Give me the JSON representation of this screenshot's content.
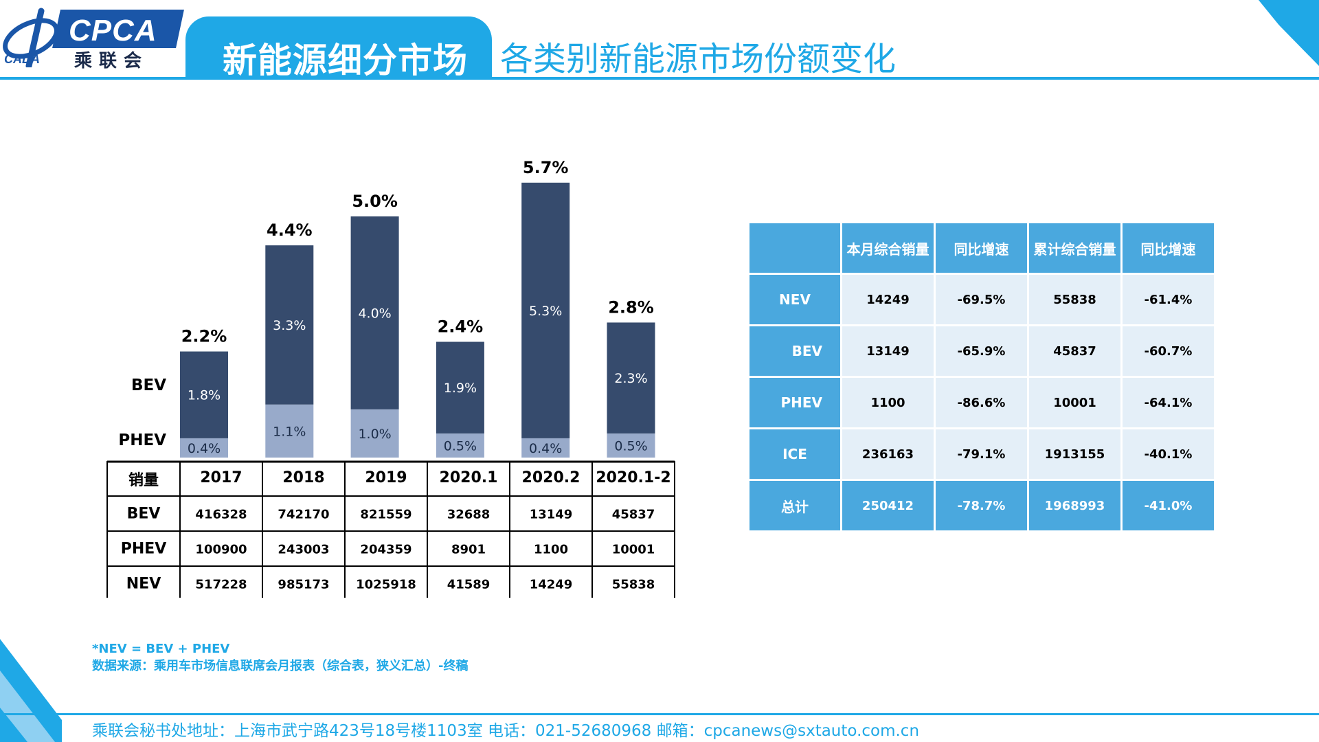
{
  "header": {
    "logo_text": "CPCA",
    "logo_cn": "乘联会",
    "logo_sub": "CADA",
    "tab_label": "新能源细分市场",
    "page_title": "各类别新能源市场份额变化"
  },
  "colors": {
    "accent": "#1fa8e6",
    "bev": "#364b6d",
    "phev": "#98aaca",
    "table_header": "#4aa8de",
    "table_cell": "#e4eff8"
  },
  "chart_data": {
    "type": "bar",
    "stacked": true,
    "categories": [
      "2017",
      "2018",
      "2019",
      "2020.1",
      "2020.2",
      "2020.1-2"
    ],
    "series": [
      {
        "name": "PHEV",
        "values": [
          0.4,
          1.1,
          1.0,
          0.5,
          0.4,
          0.5
        ],
        "labels": [
          "0.4%",
          "1.1%",
          "1.0%",
          "0.5%",
          "0.4%",
          "0.5%"
        ]
      },
      {
        "name": "BEV",
        "values": [
          1.8,
          3.3,
          4.0,
          1.9,
          5.3,
          2.3
        ],
        "labels": [
          "1.8%",
          "3.3%",
          "4.0%",
          "1.9%",
          "5.3%",
          "2.3%"
        ]
      }
    ],
    "totals": [
      2.2,
      4.4,
      5.0,
      2.4,
      5.7,
      2.8
    ],
    "total_labels": [
      "2.2%",
      "4.4%",
      "5.0%",
      "2.4%",
      "5.7%",
      "2.8%"
    ],
    "ylim": [
      0,
      5.8
    ],
    "grid": false,
    "legend": "left",
    "data_table": {
      "corner": "销量",
      "rows": [
        {
          "label": "BEV",
          "values": [
            "416328",
            "742170",
            "821559",
            "32688",
            "13149",
            "45837"
          ]
        },
        {
          "label": "PHEV",
          "values": [
            "100900",
            "243003",
            "204359",
            "8901",
            "1100",
            "10001"
          ]
        },
        {
          "label": "NEV",
          "values": [
            "517228",
            "985173",
            "1025918",
            "41589",
            "14249",
            "55838"
          ]
        }
      ]
    }
  },
  "stats_table": {
    "headers": [
      "",
      "本月综合销量",
      "同比增速",
      "累计综合销量",
      "同比增速"
    ],
    "rows": [
      {
        "label": "NEV",
        "values": [
          "14249",
          "-69.5%",
          "55838",
          "-61.4%"
        ]
      },
      {
        "label": "BEV",
        "values": [
          "13149",
          "-65.9%",
          "45837",
          "-60.7%"
        ]
      },
      {
        "label": "PHEV",
        "values": [
          "1100",
          "-86.6%",
          "10001",
          "-64.1%"
        ]
      },
      {
        "label": "ICE",
        "values": [
          "236163",
          "-79.1%",
          "1913155",
          "-40.1%"
        ]
      },
      {
        "label": "总计",
        "values": [
          "250412",
          "-78.7%",
          "1968993",
          "-41.0%"
        ]
      }
    ]
  },
  "notes": {
    "line1": "*NEV = BEV + PHEV",
    "line2": "数据来源：乘用车市场信息联席会月报表（综合表，狭义汇总）-终稿"
  },
  "footer": {
    "text": "乘联会秘书处地址：上海市武宁路423号18号楼1103室  电话：021-52680968   邮箱：cpcanews@sxtauto.com.cn"
  }
}
